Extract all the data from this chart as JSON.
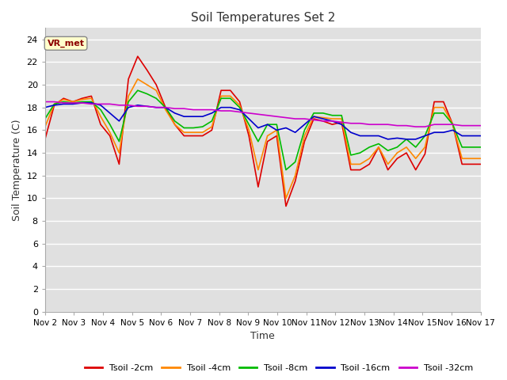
{
  "title": "Soil Temperatures Set 2",
  "xlabel": "Time",
  "ylabel": "Soil Temperature (C)",
  "bg_color": "#e0e0e0",
  "fig_bg_color": "#ffffff",
  "ylim": [
    0,
    25
  ],
  "yticks": [
    0,
    2,
    4,
    6,
    8,
    10,
    12,
    14,
    16,
    18,
    20,
    22,
    24
  ],
  "annotation_text": "VR_met",
  "annotation_color": "#8b0000",
  "annotation_bg": "#ffffcc",
  "series_names": [
    "Tsoil -2cm",
    "Tsoil -4cm",
    "Tsoil -8cm",
    "Tsoil -16cm",
    "Tsoil -32cm"
  ],
  "series_colors": [
    "#dd0000",
    "#ff8800",
    "#00bb00",
    "#0000cc",
    "#cc00cc"
  ],
  "x_labels": [
    "Nov 2",
    "Nov 3",
    "Nov 4",
    "Nov 5",
    "Nov 6",
    "Nov 7",
    "Nov 8",
    "Nov 9",
    "Nov 10",
    "Nov 11",
    "Nov 12",
    "Nov 13",
    "Nov 14",
    "Nov 15",
    "Nov 16",
    "Nov 17"
  ],
  "tsoil_2cm": [
    15.2,
    18.2,
    18.8,
    18.5,
    18.8,
    19.0,
    16.5,
    15.5,
    13.0,
    20.5,
    22.5,
    21.3,
    20.0,
    18.0,
    16.5,
    15.5,
    15.5,
    15.5,
    16.0,
    19.5,
    19.5,
    18.5,
    15.5,
    11.0,
    15.0,
    15.5,
    9.3,
    11.5,
    15.0,
    17.0,
    16.8,
    16.5,
    16.7,
    12.5,
    12.5,
    13.0,
    14.5,
    12.5,
    13.5,
    14.0,
    12.5,
    13.9,
    18.5,
    18.5,
    16.5,
    13.0,
    13.0,
    13.0
  ],
  "tsoil_4cm": [
    16.3,
    18.3,
    18.7,
    18.5,
    18.7,
    18.8,
    17.2,
    15.8,
    14.0,
    19.0,
    20.5,
    20.0,
    19.5,
    17.8,
    16.5,
    15.8,
    15.8,
    15.8,
    16.3,
    19.0,
    19.0,
    18.2,
    16.0,
    12.5,
    15.5,
    16.0,
    10.0,
    12.0,
    15.5,
    17.2,
    17.1,
    17.0,
    17.0,
    13.0,
    13.0,
    13.5,
    14.5,
    13.0,
    14.0,
    14.5,
    13.5,
    14.5,
    18.0,
    18.0,
    16.5,
    13.5,
    13.5,
    13.5
  ],
  "tsoil_8cm": [
    17.0,
    18.3,
    18.5,
    18.4,
    18.5,
    18.5,
    17.8,
    16.5,
    15.0,
    18.5,
    19.5,
    19.2,
    18.8,
    18.0,
    16.8,
    16.2,
    16.2,
    16.3,
    16.8,
    18.8,
    18.8,
    18.0,
    16.5,
    15.0,
    16.5,
    16.5,
    12.5,
    13.2,
    16.0,
    17.5,
    17.5,
    17.3,
    17.3,
    13.8,
    14.0,
    14.5,
    14.8,
    14.2,
    14.5,
    15.2,
    14.5,
    15.5,
    17.5,
    17.5,
    16.5,
    14.5,
    14.5,
    14.5
  ],
  "tsoil_16cm": [
    18.0,
    18.2,
    18.3,
    18.3,
    18.4,
    18.4,
    18.2,
    17.5,
    16.8,
    18.0,
    18.2,
    18.1,
    18.0,
    18.0,
    17.5,
    17.2,
    17.2,
    17.2,
    17.5,
    18.0,
    18.0,
    17.8,
    17.0,
    16.2,
    16.5,
    16.0,
    16.2,
    15.8,
    16.5,
    17.2,
    17.0,
    16.8,
    16.5,
    15.8,
    15.5,
    15.5,
    15.5,
    15.2,
    15.3,
    15.2,
    15.2,
    15.5,
    15.8,
    15.8,
    16.0,
    15.5,
    15.5,
    15.5
  ],
  "tsoil_32cm": [
    18.5,
    18.5,
    18.4,
    18.4,
    18.4,
    18.3,
    18.3,
    18.3,
    18.2,
    18.2,
    18.1,
    18.1,
    18.0,
    18.0,
    17.9,
    17.9,
    17.8,
    17.8,
    17.8,
    17.7,
    17.7,
    17.6,
    17.5,
    17.4,
    17.3,
    17.2,
    17.1,
    17.0,
    17.0,
    16.9,
    16.8,
    16.8,
    16.7,
    16.6,
    16.6,
    16.5,
    16.5,
    16.5,
    16.4,
    16.4,
    16.3,
    16.3,
    16.5,
    16.5,
    16.5,
    16.4,
    16.4,
    16.4
  ]
}
